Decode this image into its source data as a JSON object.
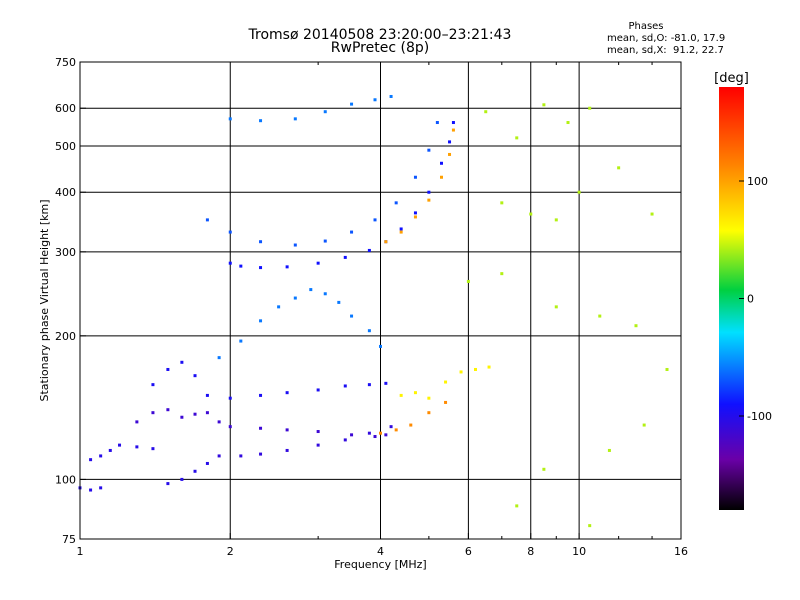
{
  "header": {
    "title_line1": "Tromsø 20140508 23:20:00–23:21:43",
    "title_line2": "RwPretec (8p)"
  },
  "stats": {
    "heading": "Phases",
    "o_line": "mean, sd,O: -81.0, 17.9",
    "x_line": "mean, sd,X:  91.2, 22.7"
  },
  "colorbar": {
    "label": "[deg]",
    "ticks": [
      "100",
      "0",
      "-100"
    ],
    "tick_values": [
      100,
      0,
      -100
    ],
    "range": [
      -180,
      180
    ]
  },
  "chart_data": {
    "type": "scatter",
    "xlabel": "Frequency [MHz]",
    "ylabel": "Stationary phase Virtual Height [km]",
    "x_scale": "log",
    "y_scale": "log",
    "xlim": [
      1,
      16
    ],
    "ylim": [
      75,
      750
    ],
    "grid": true,
    "x_ticks": [
      "1",
      "2",
      "4",
      "6",
      "8",
      "10",
      "16"
    ],
    "x_tick_values": [
      1,
      2,
      4,
      6,
      8,
      10,
      16
    ],
    "x_minor_values": [
      3,
      5,
      7,
      9,
      12,
      14
    ],
    "y_ticks": [
      "750",
      "600",
      "500",
      "400",
      "300",
      "200",
      "100",
      "75"
    ],
    "y_tick_values": [
      750,
      600,
      500,
      400,
      300,
      200,
      100,
      75
    ],
    "color_meaning": "phase [deg]",
    "series": [
      {
        "points": [
          [
            1.0,
            96
          ],
          [
            1.05,
            95
          ],
          [
            1.1,
            96
          ],
          [
            1.05,
            110
          ],
          [
            1.1,
            112
          ],
          [
            1.15,
            115
          ],
          [
            1.2,
            118
          ],
          [
            1.3,
            117
          ],
          [
            1.4,
            116
          ],
          [
            1.5,
            98
          ],
          [
            1.6,
            100
          ],
          [
            1.7,
            104
          ],
          [
            1.8,
            108
          ]
        ],
        "phase": -100
      },
      {
        "points": [
          [
            1.3,
            132
          ],
          [
            1.4,
            138
          ],
          [
            1.5,
            140
          ],
          [
            1.6,
            135
          ],
          [
            1.7,
            137
          ],
          [
            1.8,
            138
          ],
          [
            1.9,
            132
          ],
          [
            2.0,
            129
          ],
          [
            2.3,
            128
          ],
          [
            2.6,
            127
          ],
          [
            3.0,
            126
          ],
          [
            3.5,
            124
          ],
          [
            3.9,
            123
          ],
          [
            4.1,
            124
          ]
        ],
        "phase": -110
      },
      {
        "points": [
          [
            1.9,
            112
          ],
          [
            2.1,
            112
          ],
          [
            2.3,
            113
          ],
          [
            2.6,
            115
          ],
          [
            3.0,
            118
          ],
          [
            3.4,
            121
          ],
          [
            3.8,
            125
          ],
          [
            4.2,
            129
          ]
        ],
        "phase": -105
      },
      {
        "points": [
          [
            1.4,
            158
          ],
          [
            1.5,
            170
          ],
          [
            1.6,
            176
          ],
          [
            1.7,
            165
          ],
          [
            1.8,
            150
          ],
          [
            2.0,
            148
          ],
          [
            2.3,
            150
          ],
          [
            2.6,
            152
          ],
          [
            3.0,
            154
          ],
          [
            3.4,
            157
          ],
          [
            3.8,
            158
          ],
          [
            4.1,
            159
          ]
        ],
        "phase": -95
      },
      {
        "points": [
          [
            1.9,
            180
          ],
          [
            2.1,
            195
          ],
          [
            2.3,
            215
          ],
          [
            2.5,
            230
          ],
          [
            2.7,
            240
          ],
          [
            2.9,
            250
          ],
          [
            3.1,
            245
          ],
          [
            3.3,
            235
          ],
          [
            3.5,
            220
          ],
          [
            3.8,
            205
          ],
          [
            4.0,
            190
          ]
        ],
        "phase": -60
      },
      {
        "points": [
          [
            2.0,
            284
          ],
          [
            2.1,
            280
          ],
          [
            2.3,
            278
          ],
          [
            2.6,
            279
          ],
          [
            3.0,
            284
          ],
          [
            3.4,
            292
          ],
          [
            3.8,
            302
          ],
          [
            4.1,
            315
          ],
          [
            4.4,
            335
          ],
          [
            4.7,
            362
          ],
          [
            5.0,
            400
          ],
          [
            5.3,
            460
          ],
          [
            5.5,
            510
          ],
          [
            5.6,
            560
          ]
        ],
        "phase": -90
      },
      {
        "points": [
          [
            1.8,
            350
          ],
          [
            2.0,
            330
          ],
          [
            2.3,
            315
          ],
          [
            2.7,
            310
          ],
          [
            3.1,
            316
          ],
          [
            3.5,
            330
          ],
          [
            3.9,
            350
          ],
          [
            4.3,
            380
          ],
          [
            4.7,
            430
          ],
          [
            5.0,
            490
          ],
          [
            5.2,
            560
          ]
        ],
        "phase": -70
      },
      {
        "points": [
          [
            2.0,
            570
          ],
          [
            2.3,
            565
          ],
          [
            2.7,
            570
          ],
          [
            3.1,
            590
          ],
          [
            3.5,
            612
          ],
          [
            3.9,
            625
          ],
          [
            4.2,
            635
          ]
        ],
        "phase": -60
      },
      {
        "points": [
          [
            4.1,
            315
          ],
          [
            4.4,
            330
          ],
          [
            4.7,
            355
          ],
          [
            5.0,
            385
          ],
          [
            5.3,
            430
          ],
          [
            5.5,
            480
          ],
          [
            5.6,
            540
          ]
        ],
        "phase": 100
      },
      {
        "points": [
          [
            4.4,
            150
          ],
          [
            4.7,
            152
          ],
          [
            5.0,
            148
          ],
          [
            5.4,
            160
          ],
          [
            5.8,
            168
          ],
          [
            6.2,
            170
          ],
          [
            6.6,
            172
          ]
        ],
        "phase": 60
      },
      {
        "points": [
          [
            4.0,
            125
          ],
          [
            4.3,
            127
          ],
          [
            4.6,
            130
          ],
          [
            5.0,
            138
          ],
          [
            5.4,
            145
          ]
        ],
        "phase": 110
      },
      {
        "points": [
          [
            6.5,
            590
          ],
          [
            7.5,
            520
          ],
          [
            8.5,
            610
          ],
          [
            9.5,
            560
          ],
          [
            10.5,
            600
          ],
          [
            7.0,
            380
          ],
          [
            8.0,
            360
          ],
          [
            9.0,
            350
          ],
          [
            10.0,
            400
          ],
          [
            12.0,
            450
          ],
          [
            14.0,
            360
          ],
          [
            6.0,
            260
          ],
          [
            7.0,
            270
          ],
          [
            9.0,
            230
          ],
          [
            11.0,
            220
          ],
          [
            13.0,
            210
          ],
          [
            15.0,
            170
          ],
          [
            8.5,
            105
          ],
          [
            11.5,
            115
          ],
          [
            13.5,
            130
          ],
          [
            7.5,
            88
          ],
          [
            10.5,
            80
          ]
        ],
        "phase": 40
      }
    ]
  }
}
